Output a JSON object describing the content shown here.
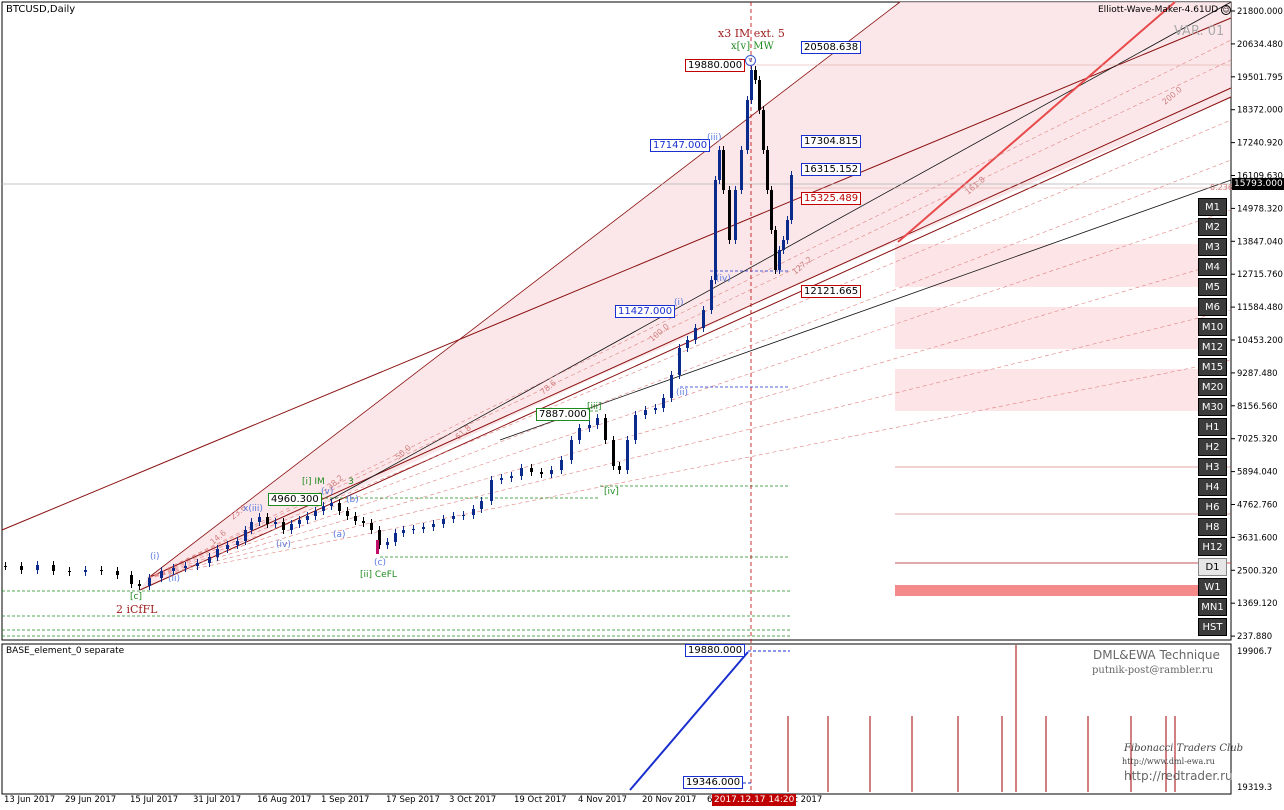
{
  "symbol_label": "BTCUSD,Daily",
  "indicator_label": "Elliott-Wave-Maker-4.61UD",
  "variant_label": "VAR. 01",
  "sub_window_label": "BASE_element_0 separate",
  "technique": {
    "title": "DML&EWA Technique",
    "email": "putnik-post@rambler.ru",
    "club": "Fibonacci Traders Club",
    "club_url": "http://www.dml-ewa.ru",
    "site": "http://redtrader.ru"
  },
  "colors": {
    "bull": "#0a2a8c",
    "bear": "#000000",
    "channel": "#a00000",
    "fill": "#f9dfe2",
    "accent_red": "#e8494a",
    "level_blue": "#1a2fcf",
    "level_red": "#c00000",
    "level_green": "#1e8a1e"
  },
  "price_axis": {
    "ticks": [
      "21800.000",
      "20634.480",
      "19501.795",
      "18372.000",
      "17240.920",
      "16109.630",
      "14978.320",
      "13847.040",
      "12715.760",
      "11584.480",
      "10453.200",
      "9287.480",
      "8156.560",
      "7025.320",
      "5894.040",
      "4762.760",
      "3631.600",
      "2500.320",
      "1369.120",
      "237.880"
    ],
    "current": "15793.000"
  },
  "sub_axis": {
    "top": "19906.7",
    "bottom": "19319.3"
  },
  "date_axis": [
    "13 Jun 2017",
    "29 Jun 2017",
    "15 Jul 2017",
    "31 Jul 2017",
    "16 Aug 2017",
    "1 Sep 2017",
    "17 Sep 2017",
    "3 Oct 2017",
    "19 Oct 2017",
    "4 Nov 2017",
    "20 Nov 2017",
    "6",
    "ec 2017"
  ],
  "cursor_date": "2017.12.17 14:20",
  "timeframes": [
    "M1",
    "M2",
    "M3",
    "M4",
    "M5",
    "M6",
    "M10",
    "M12",
    "M15",
    "M20",
    "M30",
    "H1",
    "H2",
    "H3",
    "H4",
    "H6",
    "H8",
    "H12",
    "D1",
    "W1",
    "MN1",
    "HST"
  ],
  "active_timeframe": "D1",
  "level_boxes": {
    "blue": [
      "20508.638",
      "17304.815",
      "16315.152",
      "17147.000",
      "11427.000"
    ],
    "red": [
      "19880.000",
      "15325.489",
      "12121.665"
    ],
    "green": [
      "4960.300",
      "7887.000"
    ],
    "sub_blue": [
      "19880.000",
      "19346.000"
    ]
  },
  "wave_labels": {
    "ext": "x3 IM ext. 5",
    "top": "x[v] MW",
    "top_circle": "v",
    "iii_top": "(iii)",
    "iv_top": "(iv)",
    "i_top": "(i)",
    "ii_top": "(ii)",
    "iii_green": "[iii]",
    "iv_green": "[iv]",
    "i_im": "[i] IM",
    "i_im_num": "3",
    "ii_cefl": "[ii] CeFL",
    "c_green": "[c]",
    "icfl": "2 iCfFL",
    "i_low": "(i)",
    "ii_low": "(ii)",
    "xiii": "x(iii)",
    "iv_low": "(iv)",
    "v_low": "(v)",
    "a_low": "(a)",
    "b_low": "(b)",
    "c_low": "(c)"
  },
  "fib_labels": [
    "14.6",
    "23.6",
    "38.2",
    "50.0",
    "61.8",
    "78.6",
    "100.0",
    "127.2",
    "161.8",
    "200.0",
    "0.236"
  ]
}
